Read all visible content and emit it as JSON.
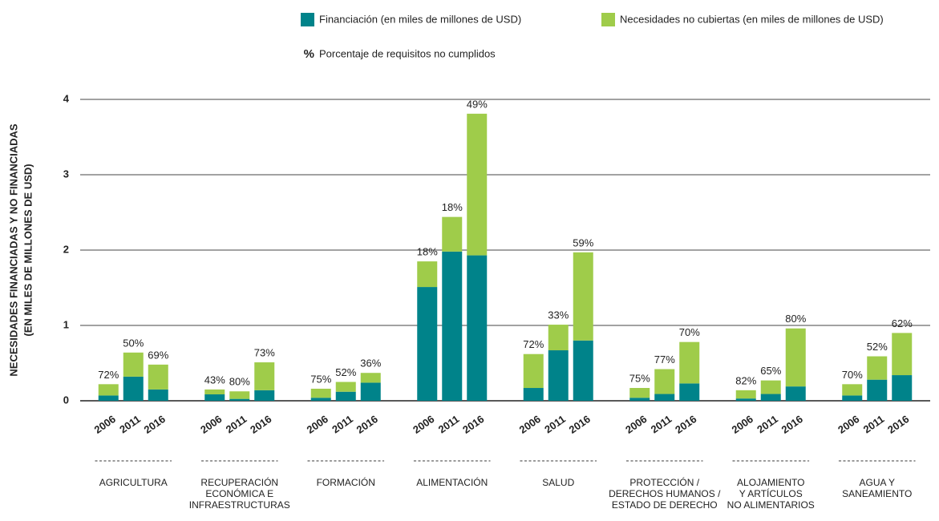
{
  "chart_data": {
    "type": "stacked_grouped_bar",
    "ylabel": [
      "NECESIDADES FINANCIADAS Y NO FINANCIADAS",
      "(EN MILES DE MILLONES DE USD)"
    ],
    "ylim": [
      0,
      4
    ],
    "yticks": [
      0,
      1,
      2,
      3,
      4
    ],
    "grid": true,
    "years": [
      2006,
      2011,
      2016
    ],
    "categories": [
      [
        "AGRICULTURA"
      ],
      [
        "RECUPERACIÓN",
        "ECONÓMICA E",
        "INFRAESTRUCTURAS"
      ],
      [
        "FORMACIÓN"
      ],
      [
        "ALIMENTACIÓN"
      ],
      [
        "SALUD"
      ],
      [
        "PROTECCIÓN /",
        "DERECHOS HUMANOS /",
        "ESTADO DE DERECHO"
      ],
      [
        "ALOJAMIENTO",
        "Y ARTÍCULOS",
        "NO ALIMENTARIOS"
      ],
      [
        "AGUA Y",
        "SANEAMIENTO"
      ]
    ],
    "series": [
      {
        "name": "Financiación (en miles de millones de USD)",
        "color": "#00838a",
        "values": [
          [
            0.07,
            0.32,
            0.15
          ],
          [
            0.085,
            0.025,
            0.14
          ],
          [
            0.04,
            0.12,
            0.24
          ],
          [
            1.51,
            1.98,
            1.93
          ],
          [
            0.17,
            0.67,
            0.8
          ],
          [
            0.04,
            0.09,
            0.23
          ],
          [
            0.03,
            0.09,
            0.19
          ],
          [
            0.07,
            0.28,
            0.34
          ]
        ]
      },
      {
        "name": "Necesidades no cubiertas (en miles de millones de USD)",
        "color": "#9fcc4a",
        "values": [
          [
            0.15,
            0.32,
            0.33
          ],
          [
            0.065,
            0.1,
            0.37
          ],
          [
            0.12,
            0.13,
            0.13
          ],
          [
            0.34,
            0.46,
            1.88
          ],
          [
            0.45,
            0.34,
            1.17
          ],
          [
            0.13,
            0.33,
            0.55
          ],
          [
            0.11,
            0.18,
            0.77
          ],
          [
            0.15,
            0.31,
            0.56
          ]
        ]
      }
    ],
    "percent": {
      "symbol": "%",
      "name": "Porcentaje de requisitos no cumplidos",
      "values": [
        [
          72,
          50,
          69
        ],
        [
          43,
          80,
          73
        ],
        [
          75,
          52,
          36
        ],
        [
          18,
          18,
          49
        ],
        [
          72,
          33,
          59
        ],
        [
          75,
          77,
          70
        ],
        [
          82,
          65,
          80
        ],
        [
          70,
          52,
          62
        ]
      ],
      "value_labels": [
        [
          "72%",
          "50%",
          "69%"
        ],
        [
          "43%",
          "80%",
          "73%"
        ],
        [
          "75%",
          "52%",
          "36%"
        ],
        [
          "18%",
          "18%",
          "49%"
        ],
        [
          "72%",
          "33%",
          "59%"
        ],
        [
          "75%",
          "77%",
          "70%"
        ],
        [
          "82%",
          "65%",
          "80%"
        ],
        [
          "70%",
          "52%",
          "62%"
        ]
      ]
    }
  }
}
